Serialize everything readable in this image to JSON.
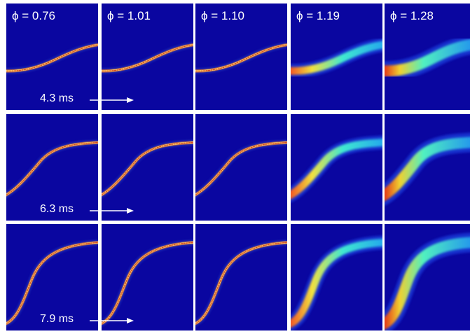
{
  "colors": {
    "background": "#0a06a0",
    "frame": "#ffffff",
    "label": "#ffffff"
  },
  "columns": [
    {
      "phi_label": "ϕ = 0.76",
      "phi_value": 0.76
    },
    {
      "phi_label": "ϕ = 1.01",
      "phi_value": 1.01
    },
    {
      "phi_label": "ϕ = 1.10",
      "phi_value": 1.1
    },
    {
      "phi_label": "ϕ = 1.19",
      "phi_value": 1.19
    },
    {
      "phi_label": "ϕ = 1.28",
      "phi_value": 1.28
    }
  ],
  "rows": [
    {
      "time_label": "4.3 ms"
    },
    {
      "time_label": "6.3 ms"
    },
    {
      "time_label": "7.9 ms"
    }
  ]
}
